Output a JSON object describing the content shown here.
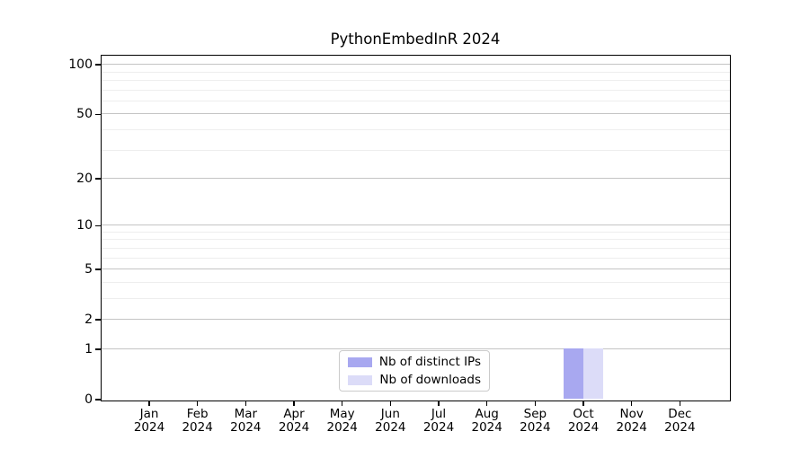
{
  "chart_data": {
    "type": "bar",
    "title": "PythonEmbedInR 2024",
    "categories": [
      "Jan 2024",
      "Feb 2024",
      "Mar 2024",
      "Apr 2024",
      "May 2024",
      "Jun 2024",
      "Jul 2024",
      "Aug 2024",
      "Sep 2024",
      "Oct 2024",
      "Nov 2024",
      "Dec 2024"
    ],
    "series": [
      {
        "name": "Nb of distinct IPs",
        "color": "#a8a8f0",
        "values": [
          0,
          0,
          0,
          0,
          0,
          0,
          0,
          0,
          0,
          1,
          0,
          0
        ]
      },
      {
        "name": "Nb of downloads",
        "color": "#dcdcf8",
        "values": [
          0,
          0,
          0,
          0,
          0,
          0,
          0,
          0,
          0,
          1,
          0,
          0
        ]
      }
    ],
    "yaxis": {
      "scale": "log1p",
      "ticks": [
        0,
        1,
        2,
        5,
        10,
        20,
        50,
        100
      ],
      "minor_ticks": [
        3,
        4,
        6,
        7,
        8,
        9,
        30,
        40,
        60,
        70,
        80,
        90
      ],
      "range_top": 113.5
    },
    "xlabel": "",
    "ylabel": "",
    "grid": true,
    "legend_position": "bottom-center",
    "colors": {
      "background": "#ffffff",
      "major_grid": "#c4c4c4",
      "minor_grid": "#eeeeee",
      "spine": "#000000",
      "text": "#000000"
    }
  }
}
